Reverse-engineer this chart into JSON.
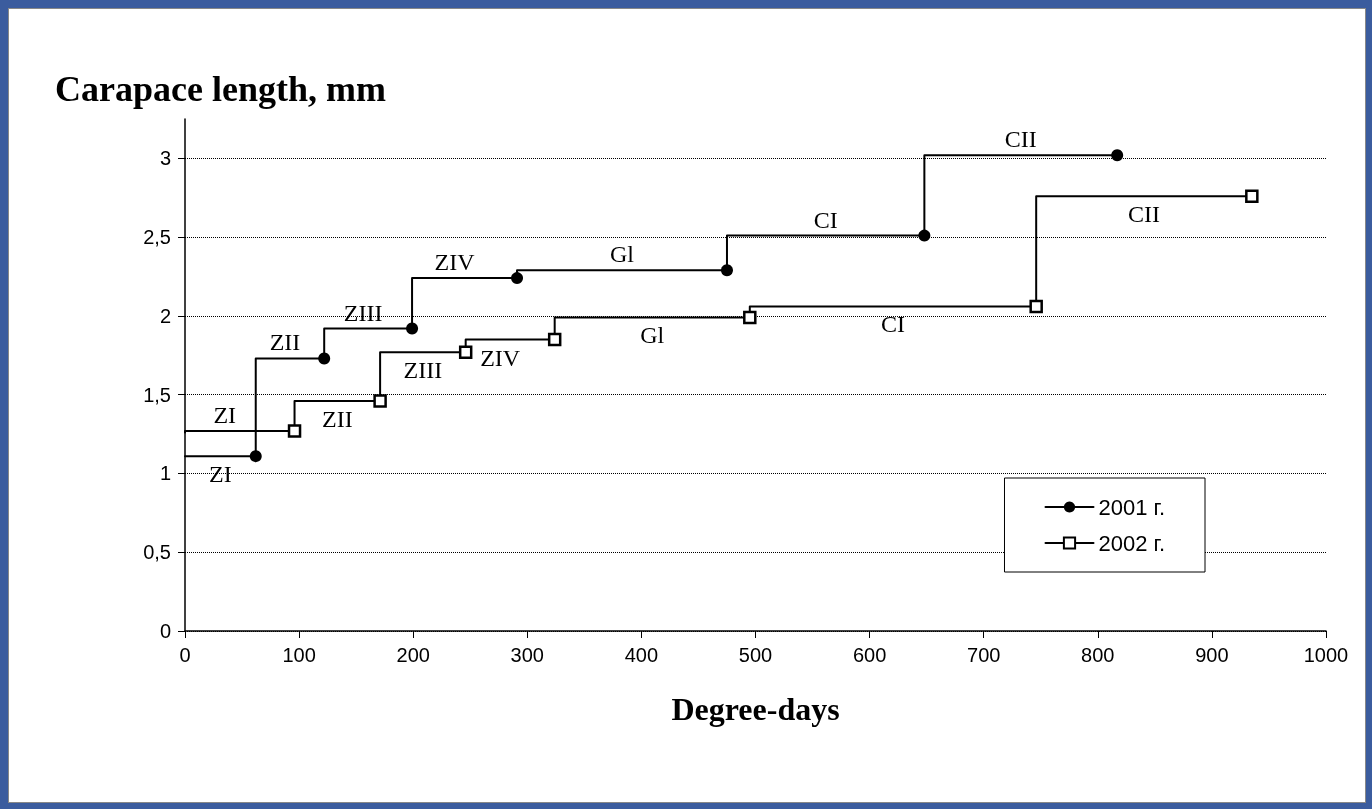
{
  "chart_data": {
    "type": "step",
    "xlabel": "Degree-days",
    "ylabel": "Carapace length, mm",
    "xlim": [
      0,
      1000
    ],
    "xticks": [
      0,
      100,
      200,
      300,
      400,
      500,
      600,
      700,
      800,
      900,
      1000
    ],
    "ylim": [
      0,
      3.25
    ],
    "yticks": [
      0,
      {
        "value": 0.5,
        "label": "0,5"
      },
      1,
      {
        "value": 1.5,
        "label": "1,5"
      },
      2,
      {
        "value": 2.5,
        "label": "2,5"
      },
      3
    ],
    "grid": "y",
    "legend": "bottom right",
    "line_style": "solid",
    "series": [
      {
        "name": "2001 г.",
        "color": "#000000",
        "marker": "circle",
        "x": [
          0,
          62,
          122,
          199,
          291,
          475,
          648,
          817
        ],
        "values": [
          1.11,
          1.11,
          1.73,
          1.92,
          2.24,
          2.29,
          2.51,
          3.02
        ]
      },
      {
        "name": "2002 г.",
        "color": "#000000",
        "marker": "square",
        "x": [
          0,
          96,
          171,
          246,
          324,
          495,
          746,
          935
        ],
        "values": [
          1.26,
          1.27,
          1.46,
          1.77,
          1.85,
          1.99,
          2.06,
          2.76
        ]
      }
    ],
    "annotations": [
      "ZI",
      "ZII",
      "ZIII",
      "ZIV",
      "Gl",
      "CI",
      "CII",
      "ZI",
      "ZII",
      "ZIII",
      "ZIV",
      "Gl",
      "CI",
      "CII"
    ]
  }
}
